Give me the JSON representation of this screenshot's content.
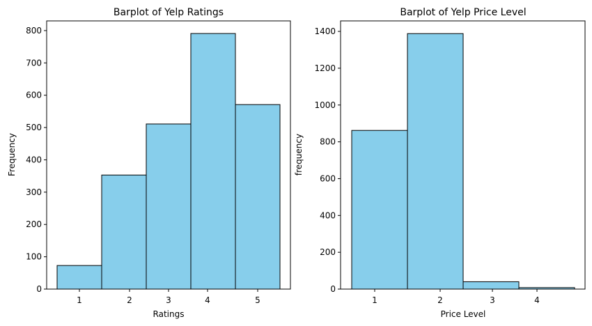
{
  "chart_data": [
    {
      "type": "bar",
      "title": "Barplot of Yelp Ratings",
      "xlabel": "Ratings",
      "ylabel": "Frequency",
      "categories": [
        "1",
        "2",
        "3",
        "4",
        "5"
      ],
      "values": [
        73,
        353,
        511,
        791,
        571
      ],
      "x_ticks": [
        "1",
        "2",
        "3",
        "4",
        "5"
      ],
      "y_ticks": [
        "0",
        "100",
        "200",
        "300",
        "400",
        "500",
        "600",
        "700",
        "800"
      ],
      "ylim": [
        0,
        830
      ],
      "bar_color": "#87CEEB",
      "edge_color": "#000000",
      "grid": false
    },
    {
      "type": "bar",
      "title": "Barplot of Yelp Price Level",
      "xlabel": "Price Level",
      "ylabel": "frequency",
      "categories": [
        "1",
        "2",
        "3",
        "4"
      ],
      "values": [
        862,
        1388,
        40,
        8
      ],
      "x_ticks": [
        "1",
        "2",
        "3",
        "4"
      ],
      "y_ticks": [
        "0",
        "200",
        "400",
        "600",
        "800",
        "1000",
        "1200",
        "1400"
      ],
      "ylim": [
        0,
        1457
      ],
      "bar_color": "#87CEEB",
      "edge_color": "#000000",
      "grid": false
    }
  ]
}
